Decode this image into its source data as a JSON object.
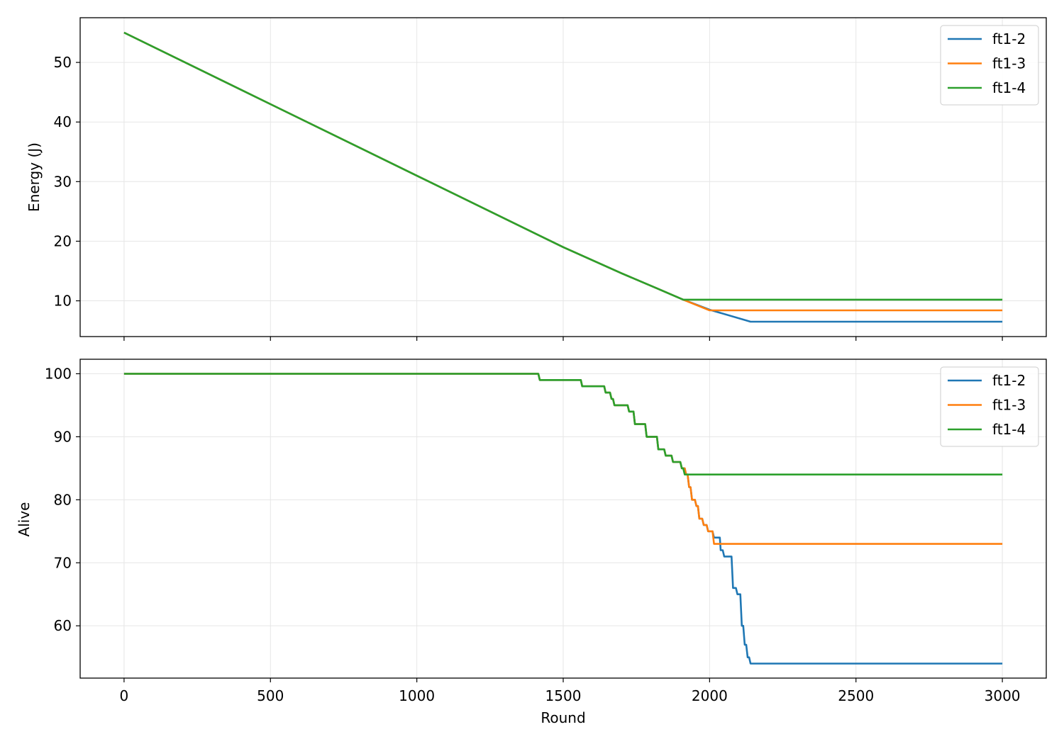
{
  "chart_data": [
    {
      "type": "line",
      "title": "",
      "xlabel": "",
      "ylabel": "Energy (J)",
      "xlim": [
        -150,
        3150
      ],
      "ylim": [
        4.0,
        57.5
      ],
      "xticks": [
        0,
        500,
        1000,
        1500,
        2000,
        2500,
        3000
      ],
      "yticks": [
        10,
        20,
        30,
        40,
        50
      ],
      "grid": true,
      "legend": "top-right",
      "series": [
        {
          "name": "ft1-2",
          "color": "#1f77b4",
          "x": [
            0,
            500,
            1000,
            1500,
            1700,
            1820,
            1910,
            2000,
            2140,
            3000
          ],
          "y": [
            55,
            43,
            31,
            19,
            14.6,
            12.1,
            10.2,
            8.5,
            6.5,
            6.5
          ]
        },
        {
          "name": "ft1-3",
          "color": "#ff7f0e",
          "x": [
            0,
            500,
            1000,
            1500,
            1700,
            1820,
            1910,
            2000,
            3000
          ],
          "y": [
            55,
            43,
            31,
            19,
            14.6,
            12.1,
            10.2,
            8.4,
            8.4
          ]
        },
        {
          "name": "ft1-4",
          "color": "#2ca02c",
          "x": [
            0,
            500,
            1000,
            1500,
            1700,
            1820,
            1910,
            3000
          ],
          "y": [
            55,
            43,
            31,
            19,
            14.6,
            12.1,
            10.2,
            10.2
          ]
        }
      ]
    },
    {
      "type": "line",
      "title": "",
      "xlabel": "Round",
      "ylabel": "Alive",
      "xlim": [
        -150,
        3150
      ],
      "ylim": [
        51.7,
        102.3
      ],
      "xticks": [
        0,
        500,
        1000,
        1500,
        2000,
        2500,
        3000
      ],
      "yticks": [
        60,
        70,
        80,
        90,
        100
      ],
      "grid": true,
      "legend": "top-right",
      "series": [
        {
          "name": "ft1-2",
          "color": "#1f77b4",
          "x": [
            0,
            1415,
            1420,
            1560,
            1565,
            1640,
            1645,
            1660,
            1665,
            1670,
            1675,
            1720,
            1725,
            1740,
            1745,
            1780,
            1785,
            1820,
            1825,
            1845,
            1850,
            1870,
            1875,
            1900,
            1905,
            1915,
            1920,
            1925,
            1930,
            1935,
            1940,
            1950,
            1955,
            1960,
            1965,
            1975,
            1980,
            1990,
            1995,
            2010,
            2015,
            2035,
            2038,
            2045,
            2050,
            2075,
            2080,
            2090,
            2095,
            2105,
            2110,
            2115,
            2120,
            2125,
            2130,
            2135,
            2140,
            3000
          ],
          "y": [
            100,
            100,
            99,
            99,
            98,
            98,
            97,
            97,
            96,
            96,
            95,
            95,
            94,
            94,
            92,
            92,
            90,
            90,
            88,
            88,
            87,
            87,
            86,
            86,
            85,
            85,
            84,
            84,
            82,
            82,
            80,
            80,
            79,
            79,
            77,
            77,
            76,
            76,
            75,
            75,
            74,
            74,
            72,
            72,
            71,
            71,
            66,
            66,
            65,
            65,
            60,
            60,
            57,
            57,
            55,
            55,
            54,
            54
          ]
        },
        {
          "name": "ft1-3",
          "color": "#ff7f0e",
          "x": [
            0,
            1415,
            1420,
            1560,
            1565,
            1640,
            1645,
            1660,
            1665,
            1670,
            1675,
            1720,
            1725,
            1740,
            1745,
            1780,
            1785,
            1820,
            1825,
            1845,
            1850,
            1870,
            1875,
            1900,
            1905,
            1915,
            1920,
            1925,
            1930,
            1935,
            1940,
            1950,
            1955,
            1960,
            1965,
            1975,
            1980,
            1990,
            1995,
            2010,
            2015,
            3000
          ],
          "y": [
            100,
            100,
            99,
            99,
            98,
            98,
            97,
            97,
            96,
            96,
            95,
            95,
            94,
            94,
            92,
            92,
            90,
            90,
            88,
            88,
            87,
            87,
            86,
            86,
            85,
            85,
            84,
            84,
            82,
            82,
            80,
            80,
            79,
            79,
            77,
            77,
            76,
            76,
            75,
            75,
            73,
            73
          ]
        },
        {
          "name": "ft1-4",
          "color": "#2ca02c",
          "x": [
            0,
            1415,
            1420,
            1560,
            1565,
            1640,
            1645,
            1660,
            1665,
            1670,
            1675,
            1720,
            1725,
            1740,
            1745,
            1780,
            1785,
            1820,
            1825,
            1845,
            1850,
            1870,
            1875,
            1900,
            1905,
            1910,
            1915,
            3000
          ],
          "y": [
            100,
            100,
            99,
            99,
            98,
            98,
            97,
            97,
            96,
            96,
            95,
            95,
            94,
            94,
            92,
            92,
            90,
            90,
            88,
            88,
            87,
            87,
            86,
            86,
            85,
            85,
            84,
            84
          ]
        }
      ]
    }
  ]
}
